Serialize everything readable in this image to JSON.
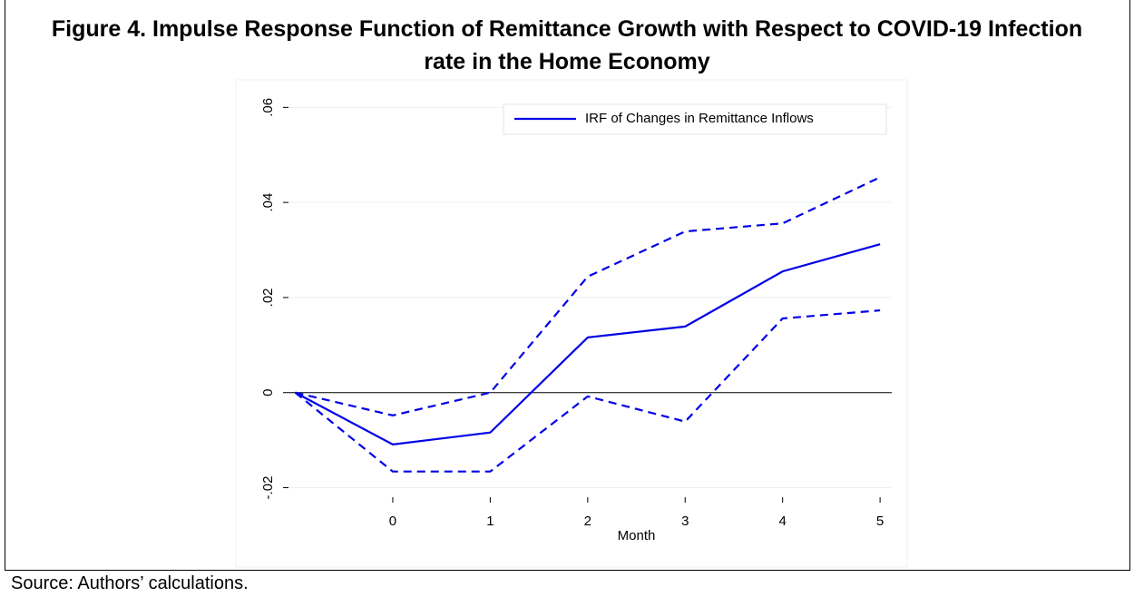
{
  "chart_data": {
    "type": "line",
    "title": "Figure 4. Impulse Response Function of Remittance Growth with Respect to COVID-19 Infection rate in the Home Economy",
    "x_label": "Month",
    "x": [
      -1,
      0,
      1,
      2,
      3,
      4,
      5
    ],
    "series": [
      {
        "name": "IRF of Changes in Remittance Inflows",
        "color": "#0000e6",
        "dashed": false,
        "values": [
          0,
          -0.0109,
          -0.0084,
          0.0116,
          0.0139,
          0.0255,
          0.0312
        ]
      },
      {
        "color": "#0000e6",
        "dashed": true,
        "values": [
          0,
          -0.0048,
          0,
          0.0244,
          0.0339,
          0.0356,
          0.0453
        ]
      },
      {
        "color": "#0000e6",
        "dashed": true,
        "values": [
          0,
          -0.0166,
          -0.0166,
          -0.0008,
          -0.0061,
          0.0156,
          0.0173
        ]
      }
    ],
    "xlim": [
      -1.07,
      5.12
    ],
    "xticks": [
      0,
      1,
      2,
      3,
      4,
      5
    ],
    "ylim": [
      -0.022,
      0.0635
    ],
    "yticks": [
      {
        "value": -0.02,
        "label": "-.02"
      },
      0,
      {
        "value": 0.02,
        "label": ".02"
      },
      {
        "value": 0.04,
        "label": ".04"
      },
      {
        "value": 0.06,
        "label": ".06"
      }
    ],
    "grid": true,
    "zero_line": true,
    "legend": "top-right"
  },
  "source": "Source: Authors’ calculations."
}
